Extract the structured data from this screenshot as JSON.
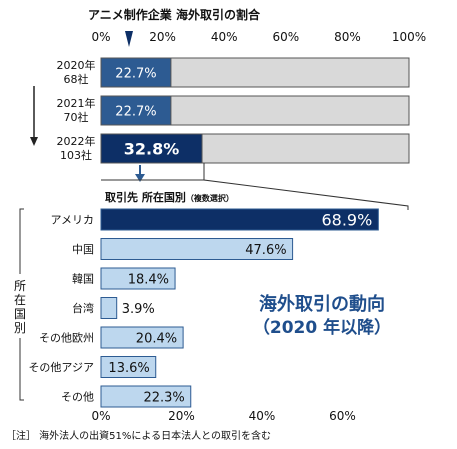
{
  "chart_data": [
    {
      "type": "bar",
      "orientation": "horizontal",
      "stacked_to": 100,
      "title": "アニメ制作企業 海外取引の割合",
      "categories": [
        {
          "year": "2020年",
          "count": "68社"
        },
        {
          "year": "2021年",
          "count": "70社"
        },
        {
          "year": "2022年",
          "count": "103社"
        }
      ],
      "values": [
        22.7,
        22.7,
        32.8
      ],
      "value_labels": [
        "22.7%",
        "22.7%",
        "32.8%"
      ],
      "xlim": [
        0,
        100
      ],
      "ticks": [
        "0%",
        "20%",
        "40%",
        "60%",
        "80%",
        "100%"
      ],
      "grid": false,
      "colors": {
        "filled": "#2d5b92",
        "highlight": "#0d2f66",
        "remainder": "#d9d9d9",
        "border": "#555555"
      }
    },
    {
      "type": "bar",
      "orientation": "horizontal",
      "title": "取引先 所在国別",
      "title_note": "（複数選択）",
      "group_label": "所在国別",
      "categories": [
        "アメリカ",
        "中国",
        "韓国",
        "台湾",
        "その他欧州",
        "その他アジア",
        "その他"
      ],
      "values": [
        68.9,
        47.6,
        18.4,
        3.9,
        20.4,
        13.6,
        22.3
      ],
      "value_labels": [
        "68.9%",
        "47.6%",
        "18.4%",
        "3.9%",
        "20.4%",
        "13.6%",
        "22.3%"
      ],
      "xlim": [
        0,
        80
      ],
      "ticks": [
        "0%",
        "20%",
        "40%",
        "60%"
      ],
      "grid": false,
      "annotation": [
        "海外取引の動向",
        "（2020 年以降）"
      ],
      "colors": {
        "top": "#0d2f66",
        "bars": "#bdd7ee",
        "border": "#2d5b92",
        "annotation": "#1f4e8c"
      }
    }
  ],
  "footnote": "［注］ 海外法人の出資51%による日本法人との取引を含む"
}
